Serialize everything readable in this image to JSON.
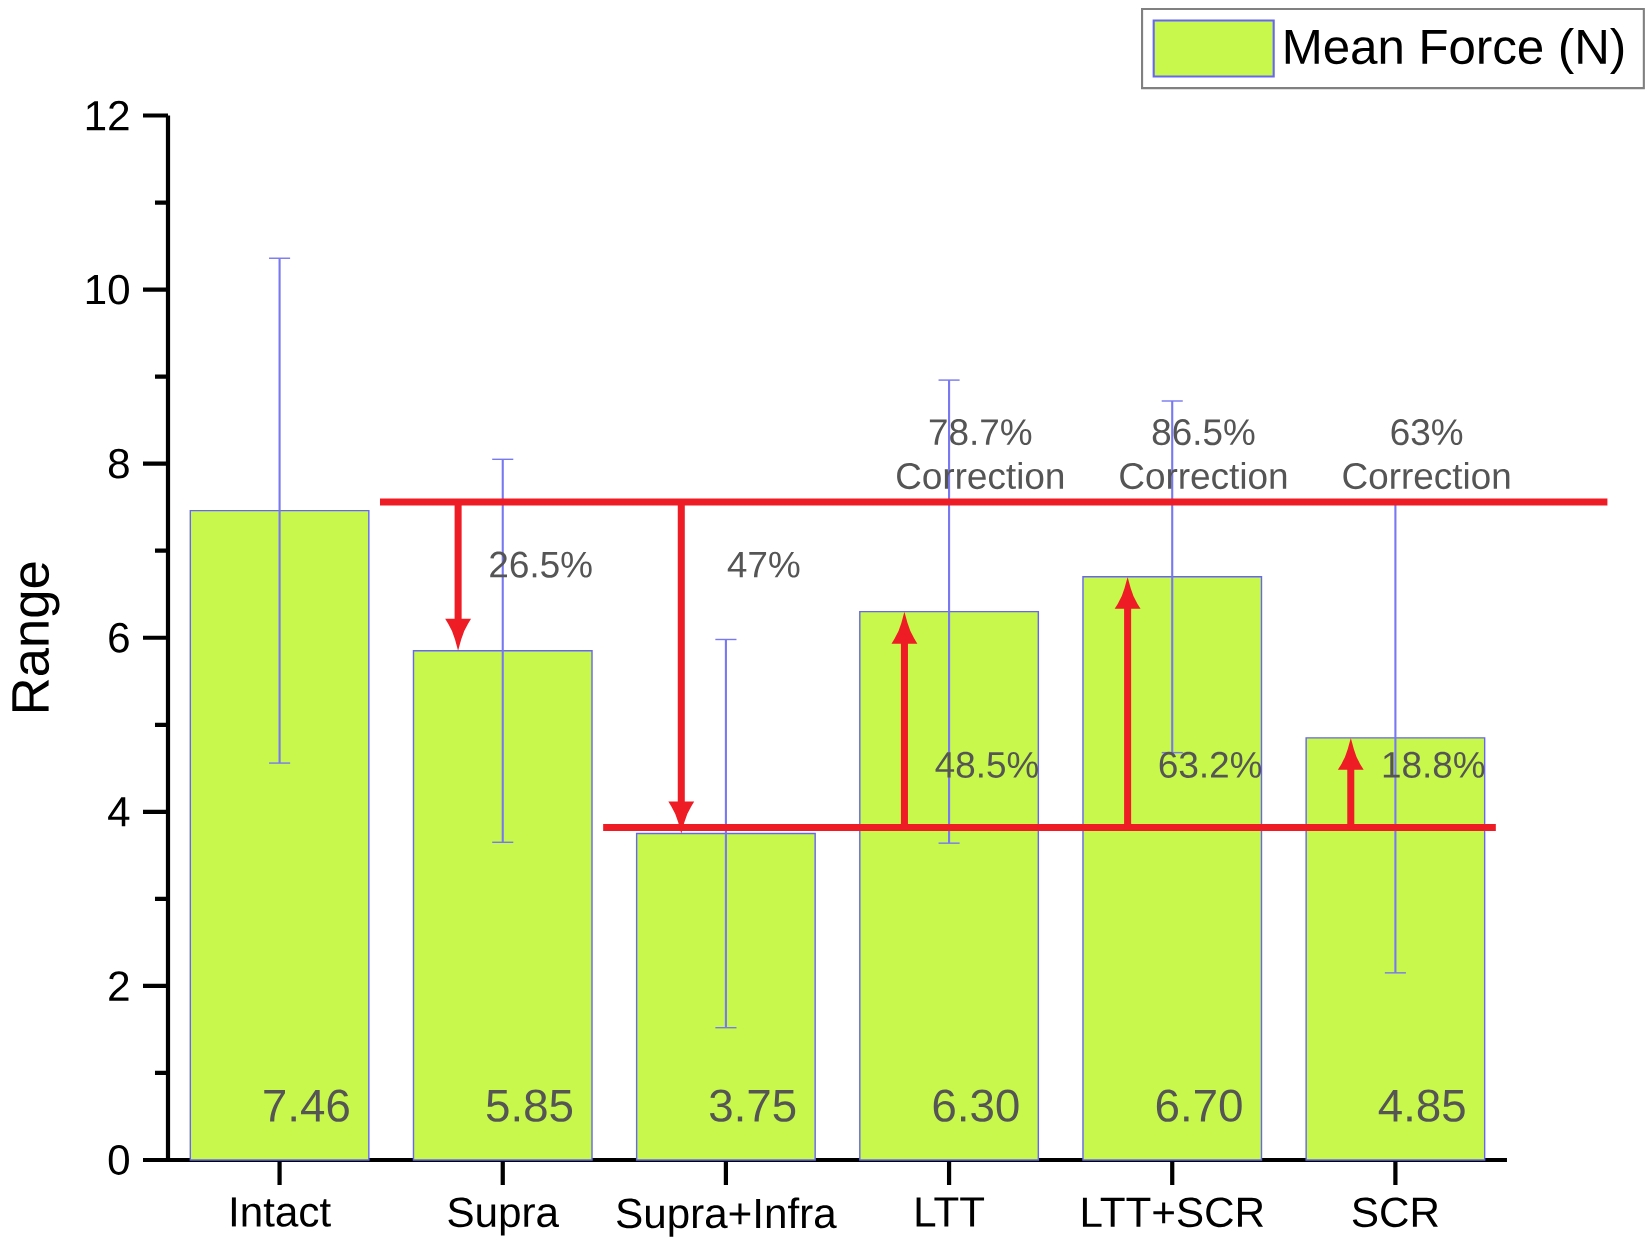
{
  "chart_data": {
    "type": "bar",
    "ylabel": "Range",
    "categories": [
      "Intact",
      "Supra",
      "Supra+Infra",
      "LTT",
      "LTT+SCR",
      "SCR"
    ],
    "series": [
      {
        "name": "Mean Force (N)",
        "color": "#c8f84c",
        "values": [
          7.46,
          5.85,
          3.75,
          6.3,
          6.7,
          4.85
        ],
        "errors": [
          2.9,
          2.2,
          2.23,
          2.66,
          2.02,
          2.7
        ],
        "value_labels": [
          "7.46",
          "5.85",
          "3.75",
          "6.30",
          "6.70",
          "4.85"
        ]
      }
    ],
    "ylim": [
      0,
      12
    ],
    "yticks": [
      0,
      2,
      4,
      6,
      8,
      10,
      12
    ],
    "legend": "top right",
    "ref_lines": [
      {
        "axis": "y",
        "value": 7.56,
        "color": "#ee1c25"
      },
      {
        "axis": "y",
        "value": 3.82,
        "color": "#ee1c25"
      }
    ],
    "annotations": [
      "26.5%",
      "47%",
      "48.5%",
      "63.2%",
      "18.8%",
      "78.7% Correction",
      "86.5% Correction",
      "63% Correction"
    ]
  }
}
